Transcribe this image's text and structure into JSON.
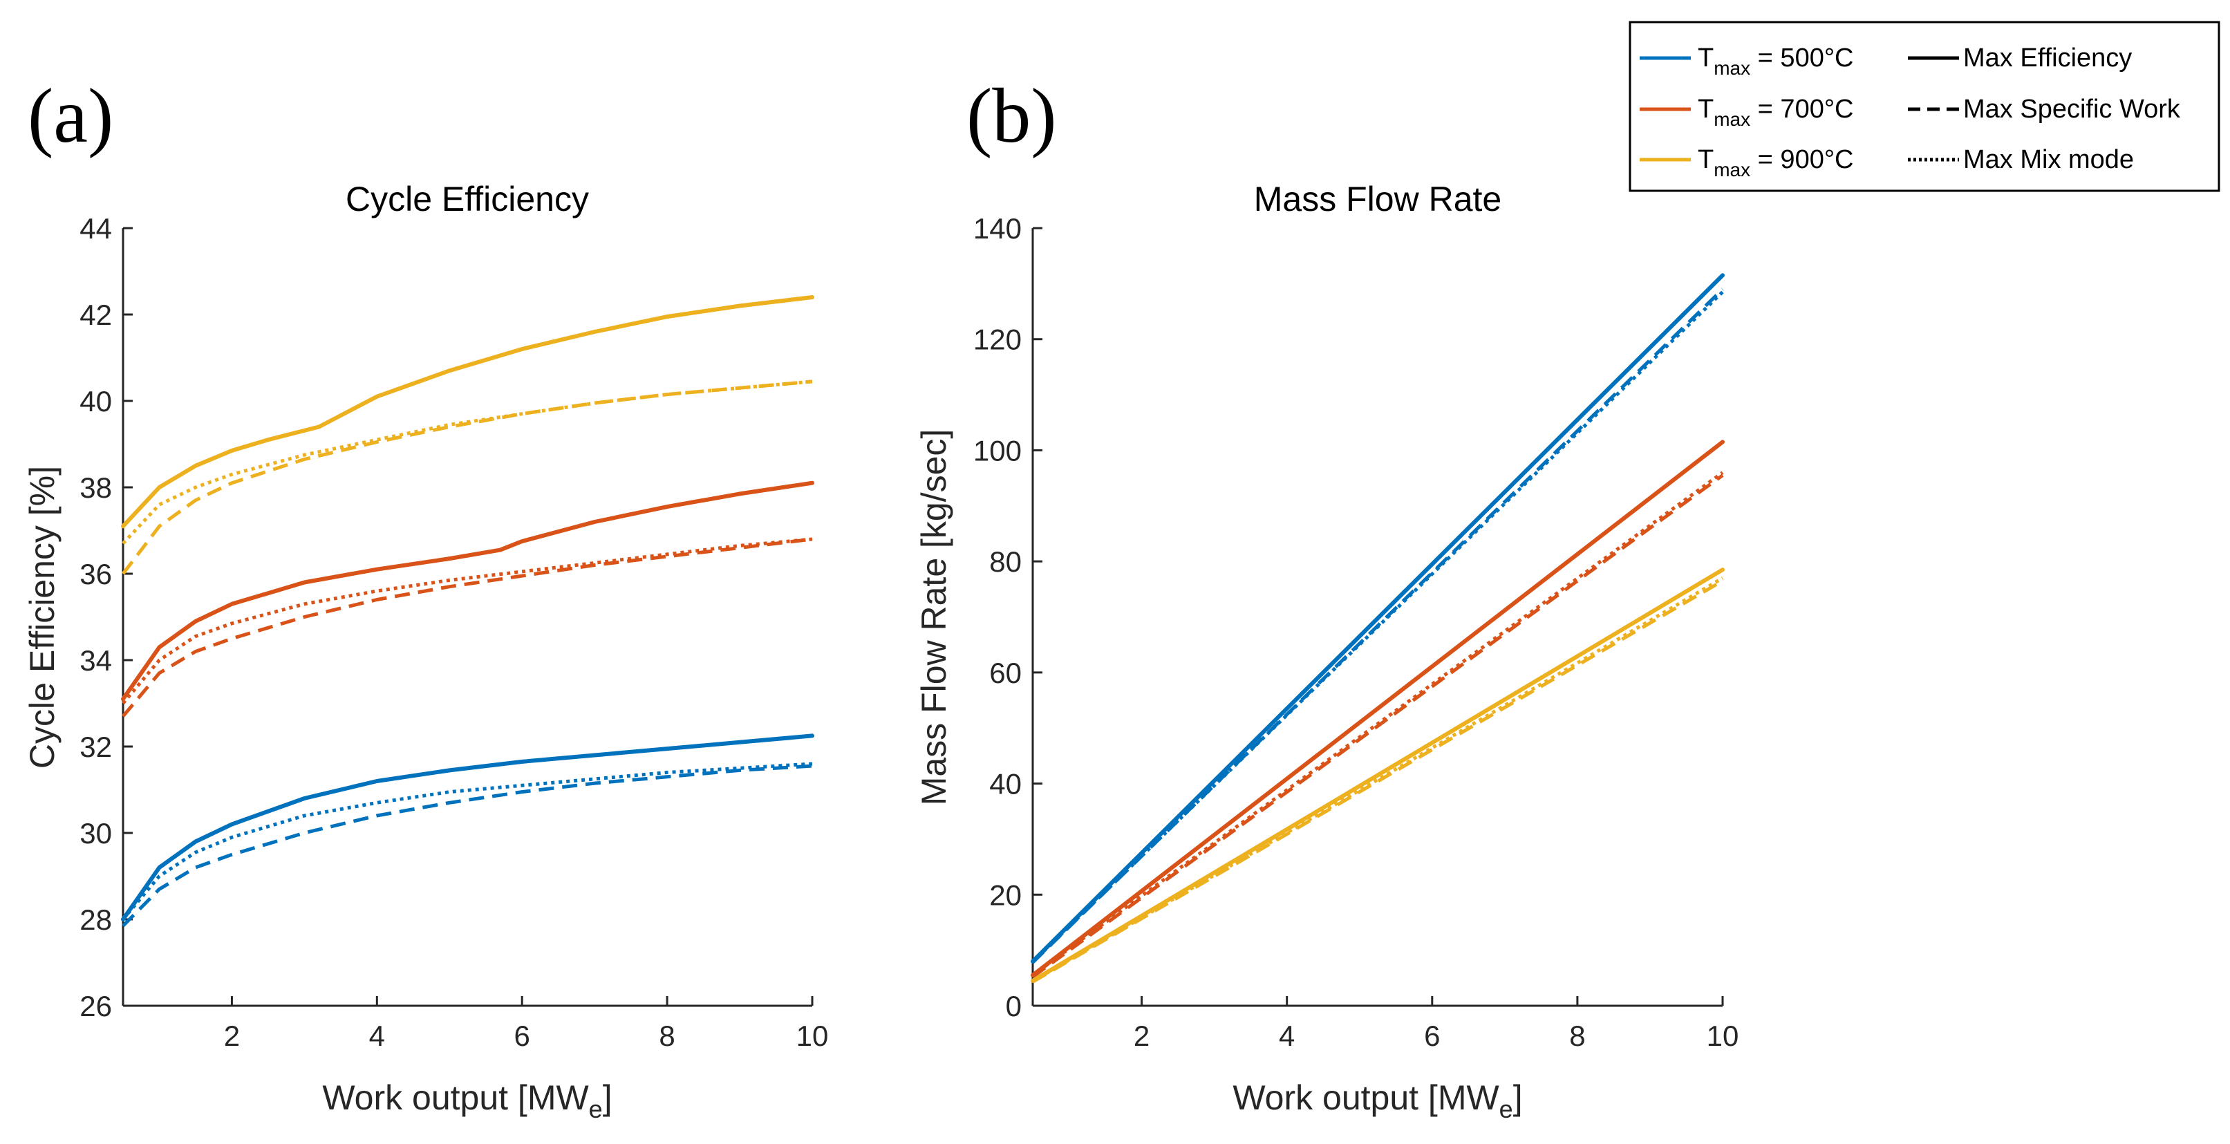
{
  "colors": {
    "t500": "#0072BD",
    "t700": "#D95319",
    "t900": "#EDB120",
    "axis": "#262626"
  },
  "chart_data": [
    {
      "type": "line",
      "panel_label": "(a)",
      "title": "Cycle Efficiency",
      "xlabel": {
        "main": "Work output [MW",
        "sub": "e",
        "close": "]"
      },
      "ylabel": "Cycle Efficiency [%]",
      "xlim": [
        0.5,
        10
      ],
      "ylim": [
        26,
        44
      ],
      "xticks": [
        2,
        4,
        6,
        8,
        10
      ],
      "xtick_labels": [
        "2",
        "4",
        "6",
        "8",
        "10"
      ],
      "yticks": [
        26,
        28,
        30,
        32,
        34,
        36,
        38,
        40,
        42,
        44
      ],
      "ytick_labels": [
        "26",
        "28",
        "30",
        "32",
        "34",
        "36",
        "38",
        "40",
        "42",
        "44"
      ],
      "series": [
        {
          "name": "T_max = 500°C, Max Efficiency",
          "color": "t500",
          "style": "solid",
          "x": [
            0.5,
            1,
            1.5,
            2,
            3,
            4,
            5,
            6,
            7,
            8,
            9,
            10
          ],
          "y": [
            28.0,
            29.2,
            29.8,
            30.2,
            30.8,
            31.2,
            31.45,
            31.65,
            31.8,
            31.95,
            32.1,
            32.25
          ]
        },
        {
          "name": "T_max = 500°C, Max Specific Work",
          "color": "t500",
          "style": "dashed",
          "x": [
            0.5,
            1,
            1.5,
            2,
            3,
            4,
            5,
            6,
            7,
            8,
            9,
            10
          ],
          "y": [
            27.85,
            28.7,
            29.2,
            29.5,
            30.0,
            30.4,
            30.7,
            30.95,
            31.15,
            31.3,
            31.45,
            31.55
          ]
        },
        {
          "name": "T_max = 500°C, Max Mix mode",
          "color": "t500",
          "style": "dotted",
          "x": [
            0.5,
            1,
            1.5,
            2,
            3,
            4,
            5,
            6,
            7,
            8,
            9,
            10
          ],
          "y": [
            28.0,
            29.0,
            29.55,
            29.9,
            30.4,
            30.7,
            30.95,
            31.1,
            31.25,
            31.4,
            31.5,
            31.6
          ]
        },
        {
          "name": "T_max = 700°C, Max Efficiency",
          "color": "t700",
          "style": "solid",
          "x": [
            0.5,
            1,
            1.5,
            2,
            3,
            4,
            5,
            5.7,
            6,
            7,
            8,
            9,
            10
          ],
          "y": [
            33.1,
            34.3,
            34.9,
            35.3,
            35.8,
            36.1,
            36.35,
            36.55,
            36.75,
            37.2,
            37.55,
            37.85,
            38.1
          ]
        },
        {
          "name": "T_max = 700°C, Max Specific Work",
          "color": "t700",
          "style": "dashed",
          "x": [
            0.5,
            1,
            1.5,
            2,
            3,
            4,
            5,
            6,
            7,
            8,
            9,
            10
          ],
          "y": [
            32.7,
            33.7,
            34.2,
            34.5,
            35.0,
            35.4,
            35.7,
            35.95,
            36.2,
            36.4,
            36.6,
            36.8
          ]
        },
        {
          "name": "T_max = 700°C, Max Mix mode",
          "color": "t700",
          "style": "dotted",
          "x": [
            0.5,
            1,
            1.5,
            2,
            3,
            4,
            5,
            6,
            7,
            8,
            9,
            10
          ],
          "y": [
            33.0,
            34.0,
            34.55,
            34.85,
            35.3,
            35.6,
            35.85,
            36.05,
            36.25,
            36.45,
            36.65,
            36.8
          ]
        },
        {
          "name": "T_max = 900°C, Max Efficiency",
          "color": "t900",
          "style": "solid",
          "x": [
            0.5,
            1,
            1.5,
            2,
            2.5,
            3.2,
            4,
            5,
            6,
            7,
            8,
            9,
            10
          ],
          "y": [
            37.1,
            38.0,
            38.5,
            38.85,
            39.1,
            39.4,
            40.1,
            40.7,
            41.2,
            41.6,
            41.95,
            42.2,
            42.4
          ]
        },
        {
          "name": "T_max = 900°C, Max Specific Work",
          "color": "t900",
          "style": "dashed",
          "x": [
            0.5,
            1,
            1.5,
            2,
            3,
            4,
            5,
            6,
            7,
            8,
            9,
            10
          ],
          "y": [
            36.0,
            37.1,
            37.7,
            38.1,
            38.65,
            39.05,
            39.4,
            39.7,
            39.95,
            40.15,
            40.3,
            40.45
          ]
        },
        {
          "name": "T_max = 900°C, Max Mix mode",
          "color": "t900",
          "style": "dotted",
          "x": [
            0.5,
            1,
            1.5,
            2,
            3,
            4,
            5,
            6,
            7,
            8,
            9,
            10
          ],
          "y": [
            36.7,
            37.6,
            38.0,
            38.3,
            38.75,
            39.1,
            39.45,
            39.7,
            39.95,
            40.15,
            40.3,
            40.45
          ]
        }
      ]
    },
    {
      "type": "line",
      "panel_label": "(b)",
      "title": "Mass Flow Rate",
      "xlabel": {
        "main": "Work output [MW",
        "sub": "e",
        "close": "]"
      },
      "ylabel": "Mass Flow Rate [kg/sec]",
      "xlim": [
        0.5,
        10
      ],
      "ylim": [
        0,
        140
      ],
      "xticks": [
        2,
        4,
        6,
        8,
        10
      ],
      "xtick_labels": [
        "2",
        "4",
        "6",
        "8",
        "10"
      ],
      "yticks": [
        0,
        20,
        40,
        60,
        80,
        100,
        120,
        140
      ],
      "ytick_labels": [
        "0",
        "20",
        "40",
        "60",
        "80",
        "100",
        "120",
        "140"
      ],
      "series": [
        {
          "name": "T_max = 500°C, Max Efficiency",
          "color": "t500",
          "style": "solid",
          "x": [
            0.5,
            10
          ],
          "y": [
            8.0,
            131.5
          ]
        },
        {
          "name": "T_max = 500°C, Max Specific Work",
          "color": "t500",
          "style": "dashed",
          "x": [
            0.5,
            10
          ],
          "y": [
            7.8,
            129.0
          ]
        },
        {
          "name": "T_max = 500°C, Max Mix mode",
          "color": "t500",
          "style": "dotted",
          "x": [
            0.5,
            10
          ],
          "y": [
            7.9,
            128.5
          ]
        },
        {
          "name": "T_max = 700°C, Max Efficiency",
          "color": "t700",
          "style": "solid",
          "x": [
            0.5,
            10
          ],
          "y": [
            5.5,
            101.5
          ]
        },
        {
          "name": "T_max = 700°C, Max Specific Work",
          "color": "t700",
          "style": "dashed",
          "x": [
            0.5,
            10
          ],
          "y": [
            5.2,
            95.5
          ]
        },
        {
          "name": "T_max = 700°C, Max Mix mode",
          "color": "t700",
          "style": "dotted",
          "x": [
            0.5,
            10
          ],
          "y": [
            5.5,
            96.0
          ]
        },
        {
          "name": "T_max = 900°C, Max Efficiency",
          "color": "t900",
          "style": "solid",
          "x": [
            0.5,
            10
          ],
          "y": [
            4.5,
            78.5
          ]
        },
        {
          "name": "T_max = 900°C, Max Specific Work",
          "color": "t900",
          "style": "dashed",
          "x": [
            0.5,
            10
          ],
          "y": [
            4.3,
            76.5
          ]
        },
        {
          "name": "T_max = 900°C, Max Mix mode",
          "color": "t900",
          "style": "dotted",
          "x": [
            0.5,
            10
          ],
          "y": [
            4.4,
            77.0
          ]
        }
      ]
    }
  ],
  "legend": {
    "placement": "top-right",
    "temps": [
      {
        "t": "T",
        "sub": "max",
        "rest": " = 500°C",
        "color": "t500"
      },
      {
        "t": "T",
        "sub": "max",
        "rest": " = 700°C",
        "color": "t700"
      },
      {
        "t": "T",
        "sub": "max",
        "rest": " = 900°C",
        "color": "t900"
      }
    ],
    "modes": [
      {
        "label": "Max Efficiency",
        "style": "solid"
      },
      {
        "label": "Max Specific Work",
        "style": "dashed"
      },
      {
        "label": "Max Mix mode",
        "style": "dotted"
      }
    ]
  }
}
